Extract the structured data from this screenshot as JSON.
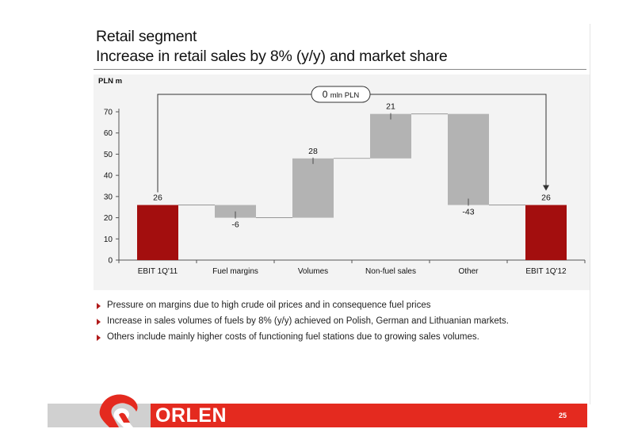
{
  "slide": {
    "title_line1": "Retail segment",
    "title_line2": "Increase in retail sales by 8% (y/y) and market share",
    "page_number": "25",
    "logo_text": "ORLEN"
  },
  "bullets": [
    "Pressure on margins due to high crude oil prices and in consequence fuel prices",
    "Increase in sales volumes of fuels by 8% (y/y) achieved on Polish, German and Lithuanian markets.",
    "Others include mainly higher costs of functioning fuel stations due to growing sales volumes."
  ],
  "colors": {
    "total_bar": "#a30e0e",
    "delta_bar": "#b3b3b3",
    "accent": "#e42a1f"
  },
  "chart_data": {
    "type": "bar",
    "subtype": "waterfall",
    "unit_label": "PLN m",
    "ylim": [
      0,
      70
    ],
    "yticks": [
      0,
      10,
      20,
      30,
      40,
      50,
      60,
      70
    ],
    "categories": [
      "EBIT 1Q'11",
      "Fuel margins",
      "Volumes",
      "Non-fuel sales",
      "Other",
      "EBIT 1Q'12"
    ],
    "bars": [
      {
        "category": "EBIT 1Q'11",
        "kind": "total",
        "start": 0,
        "end": 26,
        "label": "26"
      },
      {
        "category": "Fuel margins",
        "kind": "delta",
        "start": 26,
        "end": 20,
        "label": "-6"
      },
      {
        "category": "Volumes",
        "kind": "delta",
        "start": 20,
        "end": 48,
        "label": "28"
      },
      {
        "category": "Non-fuel sales",
        "kind": "delta",
        "start": 48,
        "end": 69,
        "label": "21"
      },
      {
        "category": "Other",
        "kind": "delta",
        "start": 69,
        "end": 26,
        "label": "-43"
      },
      {
        "category": "EBIT 1Q'12",
        "kind": "total",
        "start": 0,
        "end": 26,
        "label": "26"
      }
    ],
    "change_callout": {
      "value": "0",
      "unit": "mln PLN"
    }
  }
}
